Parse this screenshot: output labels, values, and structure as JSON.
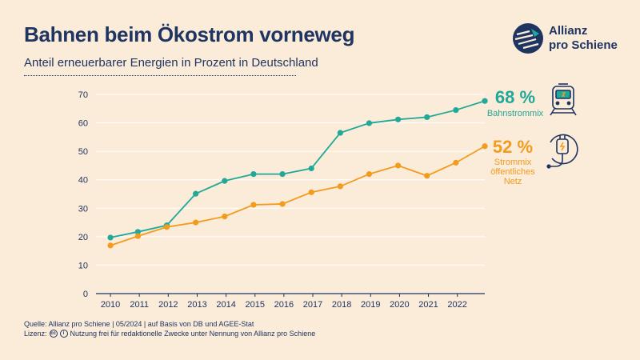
{
  "header": {
    "title": "Bahnen beim Ökostrom vorneweg",
    "subtitle": "Anteil erneuerbarer Energien in Prozent in Deutschland"
  },
  "logo": {
    "line1": "Allianz",
    "line2": "pro Schiene"
  },
  "callouts": {
    "rail": {
      "value": "68 %",
      "label": [
        "Bahnstrommix"
      ],
      "icon": "train-icon"
    },
    "grid": {
      "value": "52 %",
      "label": [
        "Strommix",
        "öffentliches",
        "Netz"
      ],
      "icon": "plug-icon"
    }
  },
  "footer": {
    "source": "Quelle: Allianz pro Schiene | 05/2024 | auf Basis von DB und AGEE-Stat",
    "license_label": "Lizenz:",
    "license_text": "Nutzung frei für redaktionelle Zwecke unter Nennung von Allianz pro Schiene"
  },
  "colors": {
    "rail": "#21a899",
    "grid": "#f29b1d",
    "navy": "#1f3561",
    "background": "#fbebd9"
  },
  "chart_data": {
    "type": "line",
    "x": [
      2010,
      2010.95,
      2011.95,
      2012.95,
      2013.95,
      2014.95,
      2015.95,
      2016.95,
      2017.95,
      2018.95,
      2019.95,
      2020.95,
      2021.95,
      2022.95
    ],
    "tick_labels": [
      "2010",
      "2011",
      "2012",
      "2013",
      "2014",
      "2015",
      "2016",
      "2017",
      "2018",
      "2019",
      "2020",
      "2021",
      "2022"
    ],
    "series": [
      {
        "key": "rail",
        "values": [
          19.7,
          21.7,
          24,
          35.1,
          39.6,
          42,
          42,
          44,
          56.5,
          59.9,
          61.2,
          62,
          64.5,
          67.7
        ]
      },
      {
        "key": "grid",
        "values": [
          16.9,
          20.2,
          23.4,
          25,
          27.1,
          31.2,
          31.5,
          35.6,
          37.7,
          42,
          45,
          41.4,
          46,
          51.8
        ]
      }
    ],
    "ylim": [
      0,
      70
    ],
    "yticks": [
      0,
      10,
      20,
      30,
      40,
      50,
      60,
      70
    ],
    "grid": true
  }
}
